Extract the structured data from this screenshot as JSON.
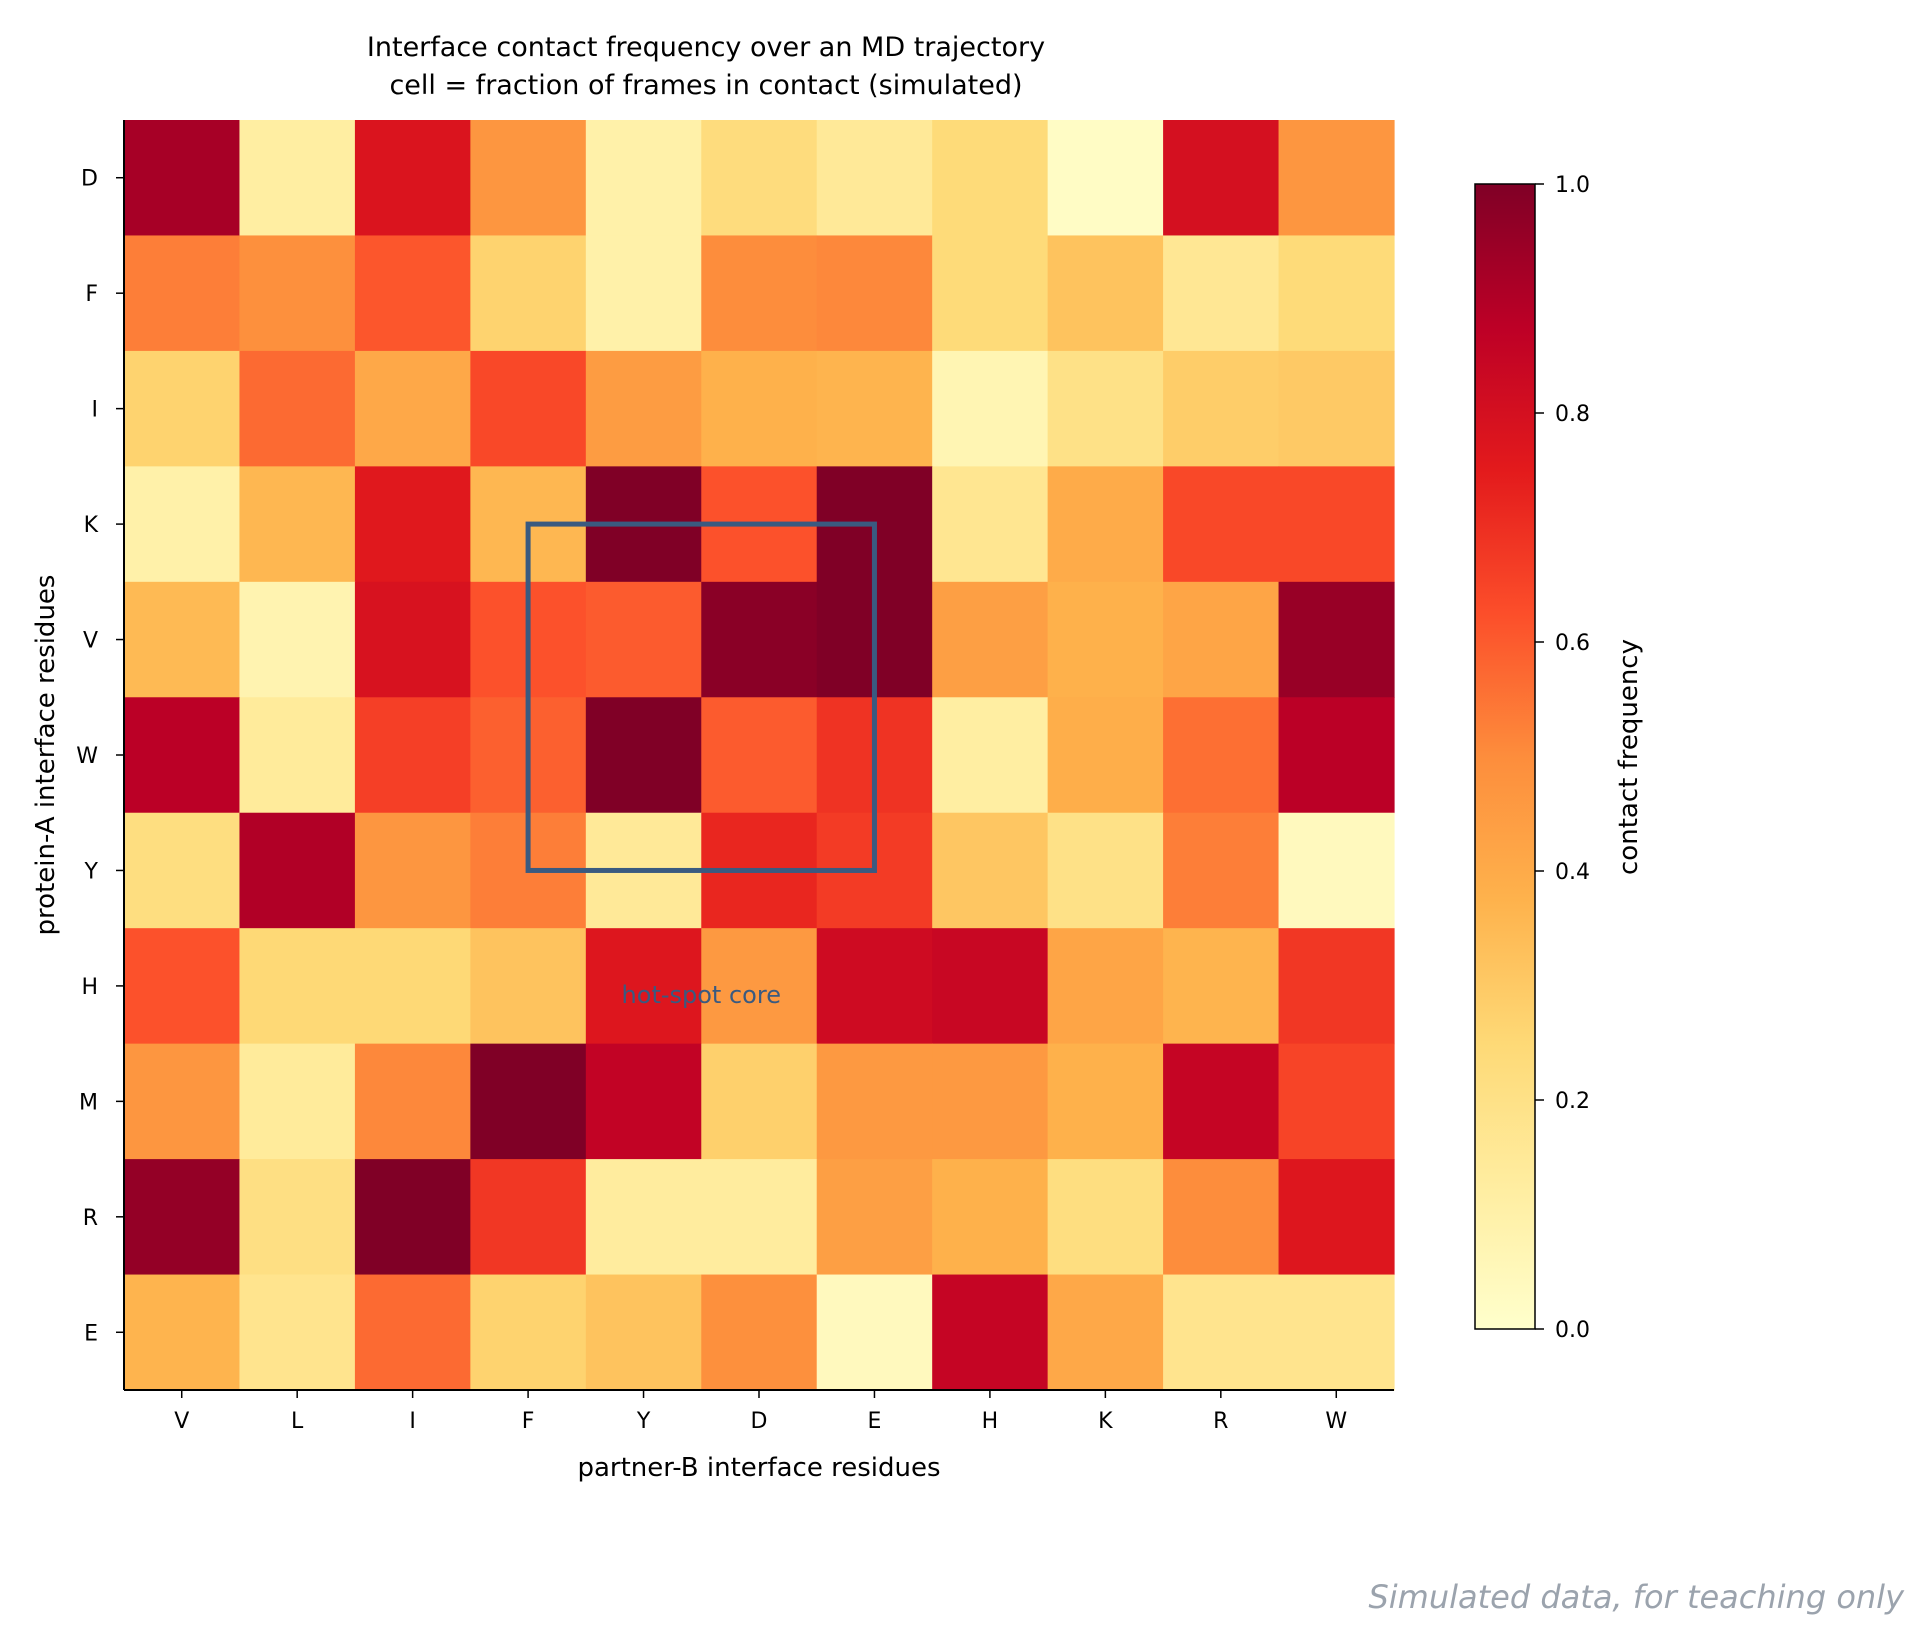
{
  "chart_data": {
    "type": "heatmap",
    "title": "Interface contact frequency over an MD trajectory",
    "subtitle": "cell = fraction of frames in contact (simulated)",
    "xlabel": "partner-B interface residues",
    "ylabel": "protein-A interface residues",
    "x_categories": [
      "V",
      "L",
      "I",
      "F",
      "Y",
      "D",
      "E",
      "H",
      "K",
      "R",
      "W"
    ],
    "y_categories": [
      "D",
      "F",
      "I",
      "K",
      "V",
      "W",
      "Y",
      "H",
      "M",
      "R",
      "E"
    ],
    "values": [
      [
        0.92,
        0.12,
        0.78,
        0.47,
        0.1,
        0.23,
        0.15,
        0.24,
        0.02,
        0.8,
        0.47
      ],
      [
        0.53,
        0.49,
        0.61,
        0.27,
        0.1,
        0.5,
        0.51,
        0.24,
        0.32,
        0.16,
        0.24
      ],
      [
        0.27,
        0.57,
        0.41,
        0.64,
        0.45,
        0.38,
        0.37,
        0.07,
        0.2,
        0.29,
        0.3
      ],
      [
        0.1,
        0.36,
        0.76,
        0.36,
        1.0,
        0.62,
        1.0,
        0.17,
        0.4,
        0.64,
        0.64
      ],
      [
        0.35,
        0.08,
        0.79,
        0.62,
        0.6,
        0.98,
        1.0,
        0.44,
        0.38,
        0.42,
        0.95
      ],
      [
        0.88,
        0.14,
        0.66,
        0.59,
        1.0,
        0.6,
        0.69,
        0.12,
        0.39,
        0.56,
        0.88
      ],
      [
        0.22,
        0.9,
        0.47,
        0.53,
        0.15,
        0.72,
        0.67,
        0.31,
        0.2,
        0.53,
        0.04
      ],
      [
        0.62,
        0.25,
        0.25,
        0.32,
        0.77,
        0.46,
        0.82,
        0.84,
        0.42,
        0.37,
        0.68
      ],
      [
        0.47,
        0.14,
        0.51,
        1.0,
        0.86,
        0.28,
        0.46,
        0.46,
        0.38,
        0.85,
        0.65
      ],
      [
        0.96,
        0.21,
        1.0,
        0.68,
        0.13,
        0.13,
        0.44,
        0.38,
        0.22,
        0.5,
        0.77
      ],
      [
        0.37,
        0.18,
        0.57,
        0.27,
        0.32,
        0.49,
        0.04,
        0.85,
        0.41,
        0.18,
        0.18
      ]
    ],
    "vmin": 0.0,
    "vmax": 1.0,
    "colormap": "YlOrRd",
    "colorbar": {
      "label": "contact frequency",
      "ticks": [
        "0.0",
        "0.2",
        "0.4",
        "0.6",
        "0.8",
        "1.0"
      ]
    },
    "highlight": {
      "label": "hot-spot core",
      "x_from": "F",
      "x_to": "E",
      "y_from": "K",
      "y_to": "Y",
      "color": "#3a5a80"
    },
    "grid": false
  },
  "footer": {
    "text": "Simulated data, for teaching only",
    "color": "#9ba3ad"
  }
}
